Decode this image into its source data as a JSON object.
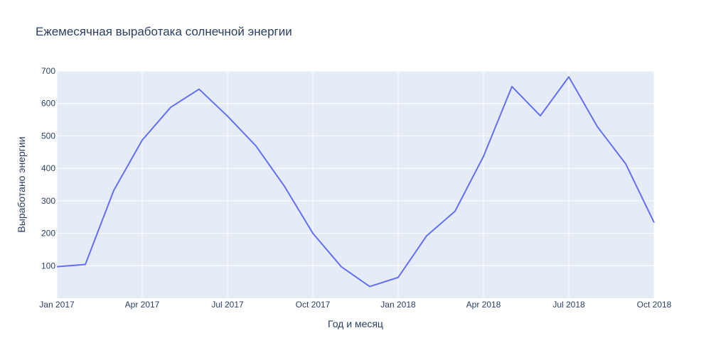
{
  "colors": {
    "plot_background": "#e5ecf6",
    "grid": "#ffffff",
    "line": "#636efa",
    "text": "#2a3f5f"
  },
  "chart_data": {
    "type": "line",
    "title": "Ежемесячная выработака солнечной энергии",
    "xlabel": "Год и месяц",
    "ylabel": "Выработано энергии",
    "xlim": [
      "2017-01",
      "2018-10"
    ],
    "ylim": [
      0,
      700
    ],
    "x_ticks": [
      {
        "date": "2017-01",
        "label": "Jan 2017"
      },
      {
        "date": "2017-04",
        "label": "Apr 2017"
      },
      {
        "date": "2017-07",
        "label": "Jul 2017"
      },
      {
        "date": "2017-10",
        "label": "Oct 2017"
      },
      {
        "date": "2018-01",
        "label": "Jan 2018"
      },
      {
        "date": "2018-04",
        "label": "Apr 2018"
      },
      {
        "date": "2018-07",
        "label": "Jul 2018"
      },
      {
        "date": "2018-10",
        "label": "Oct 2018"
      }
    ],
    "y_ticks": [
      100,
      200,
      300,
      400,
      500,
      600,
      700
    ],
    "grid": true,
    "series": [
      {
        "x": [
          "2017-01",
          "2017-02",
          "2017-03",
          "2017-04",
          "2017-05",
          "2017-06",
          "2017-07",
          "2017-08",
          "2017-09",
          "2017-10",
          "2017-11",
          "2017-12",
          "2018-01",
          "2018-02",
          "2018-03",
          "2018-04",
          "2018-05",
          "2018-06",
          "2018-07",
          "2018-08",
          "2018-09",
          "2018-10"
        ],
        "y": [
          97,
          104,
          332,
          487,
          588,
          644,
          561,
          469,
          345,
          200,
          97,
          36,
          64,
          192,
          268,
          437,
          652,
          562,
          682,
          529,
          414,
          233
        ]
      }
    ]
  }
}
